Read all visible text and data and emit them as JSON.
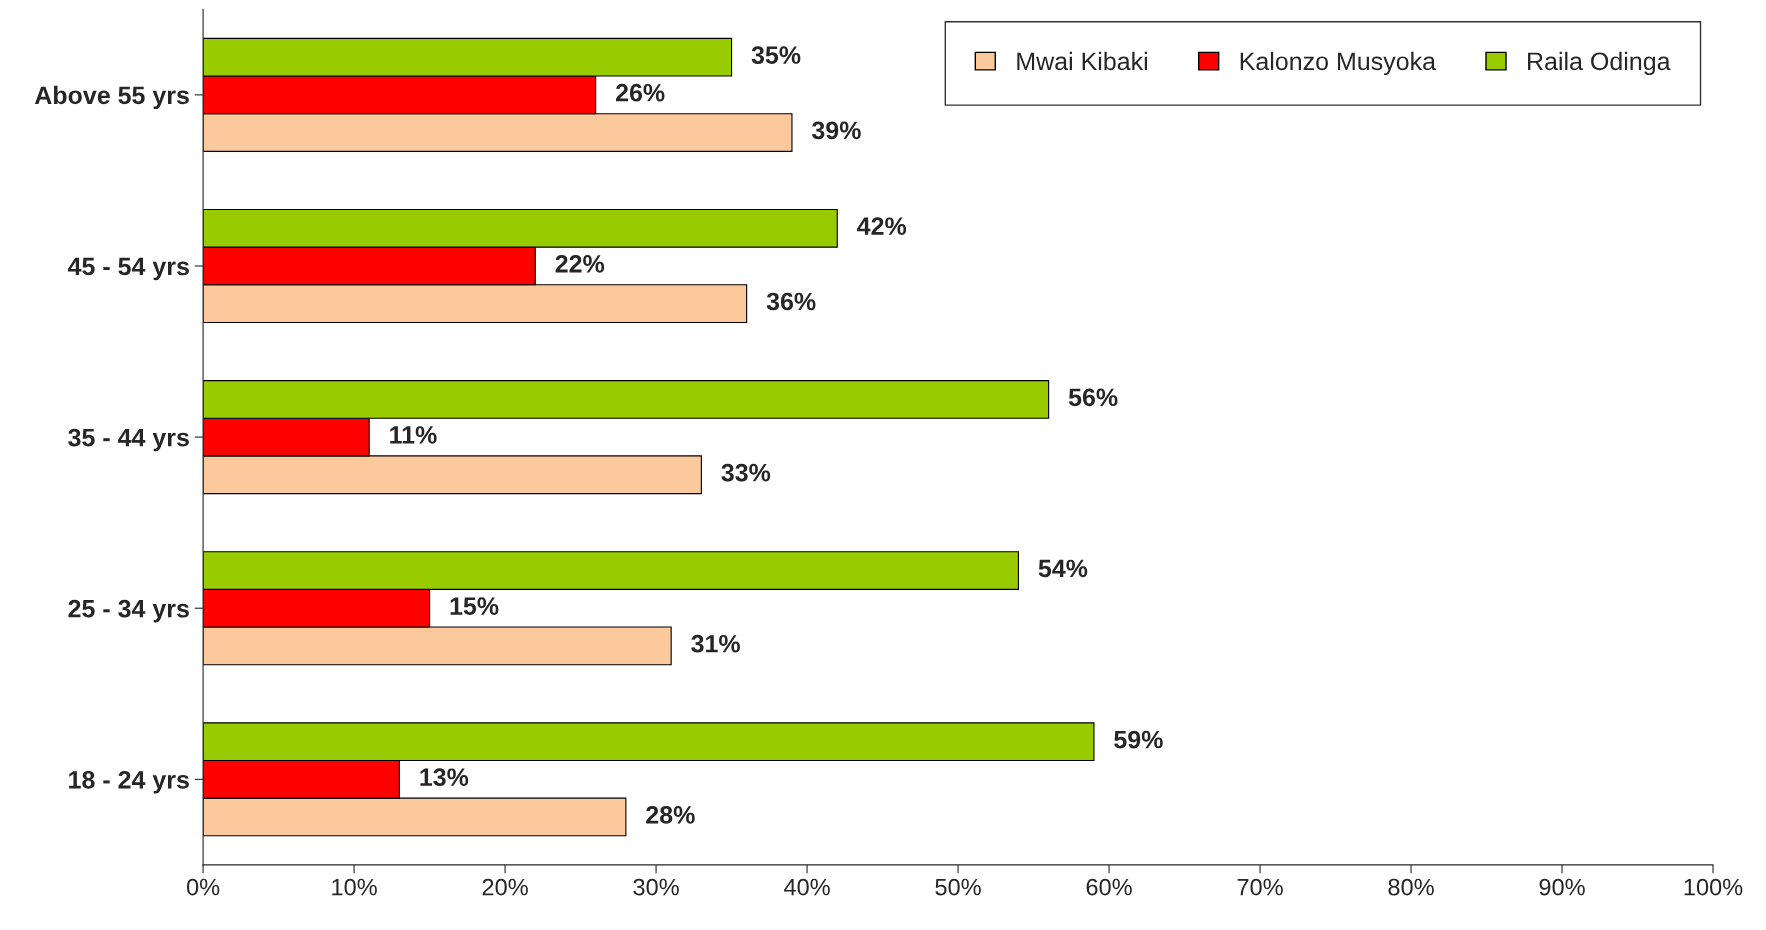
{
  "chart_data": {
    "type": "bar",
    "orientation": "horizontal",
    "categories": [
      "Above 55 yrs",
      "45 - 54 yrs",
      "35 - 44 yrs",
      "25 - 34 yrs",
      "18 - 24 yrs"
    ],
    "series": [
      {
        "name": "Mwai Kibaki",
        "color": "#fbc99c",
        "values": [
          39,
          36,
          33,
          31,
          28
        ],
        "value_labels": [
          "39%",
          "36%",
          "33%",
          "31%",
          "28%"
        ]
      },
      {
        "name": "Kalonzo Musyoka",
        "color": "#ff0000",
        "values": [
          26,
          22,
          11,
          15,
          13
        ],
        "value_labels": [
          "26%",
          "22%",
          "11%",
          "15%",
          "13%"
        ]
      },
      {
        "name": "Raila Odinga",
        "color": "#99cc00",
        "values": [
          35,
          42,
          56,
          54,
          59
        ],
        "value_labels": [
          "35%",
          "42%",
          "56%",
          "54%",
          "59%"
        ]
      }
    ],
    "xlim": [
      0,
      100
    ],
    "xticks": [
      {
        "value": 0,
        "label": "0%"
      },
      {
        "value": 10,
        "label": "10%"
      },
      {
        "value": 20,
        "label": "20%"
      },
      {
        "value": 30,
        "label": "30%"
      },
      {
        "value": 40,
        "label": "40%"
      },
      {
        "value": 50,
        "label": "50%"
      },
      {
        "value": 60,
        "label": "60%"
      },
      {
        "value": 70,
        "label": "70%"
      },
      {
        "value": 80,
        "label": "80%"
      },
      {
        "value": 90,
        "label": "90%"
      },
      {
        "value": 100,
        "label": "100%"
      }
    ],
    "legend": "top right",
    "grid": false
  }
}
